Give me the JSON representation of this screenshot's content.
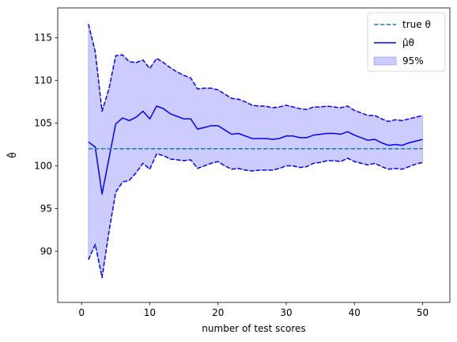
{
  "chart_data": {
    "type": "line",
    "xlabel": "number of test scores",
    "ylabel": "θ̂",
    "xlim": [
      -3.5,
      54
    ],
    "ylim": [
      84.0,
      118.5
    ],
    "x_ticks": [
      0,
      10,
      20,
      30,
      40,
      50
    ],
    "y_ticks": [
      90,
      95,
      100,
      105,
      110,
      115
    ],
    "grid": false,
    "legend_position": "top-right",
    "x": [
      1,
      2,
      3,
      4,
      5,
      6,
      7,
      8,
      9,
      10,
      11,
      12,
      13,
      14,
      15,
      16,
      17,
      18,
      19,
      20,
      21,
      22,
      23,
      24,
      25,
      26,
      27,
      28,
      29,
      30,
      31,
      32,
      33,
      34,
      35,
      36,
      37,
      38,
      39,
      40,
      41,
      42,
      43,
      44,
      45,
      46,
      47,
      48,
      49,
      50
    ],
    "true_value": 102,
    "series": [
      {
        "name": "true θ",
        "role": "true",
        "style": "dashed",
        "color": "#1f77b4"
      },
      {
        "name": "μ̂θ",
        "role": "estimate",
        "style": "solid",
        "color": "#0000ff",
        "values": [
          102.8,
          102.2,
          96.7,
          100.8,
          104.9,
          105.6,
          105.3,
          105.7,
          106.4,
          105.5,
          107.0,
          106.7,
          106.1,
          105.8,
          105.5,
          105.5,
          104.3,
          104.5,
          104.7,
          104.7,
          104.2,
          103.7,
          103.8,
          103.5,
          103.2,
          103.2,
          103.2,
          103.1,
          103.2,
          103.5,
          103.5,
          103.3,
          103.3,
          103.6,
          103.7,
          103.8,
          103.8,
          103.7,
          104.0,
          103.6,
          103.3,
          103.0,
          103.1,
          102.7,
          102.4,
          102.5,
          102.4,
          102.7,
          102.9,
          103.1
        ]
      },
      {
        "name": "upper bound",
        "role": "upper",
        "style": "dashed",
        "color": "#0000ff",
        "values": [
          116.6,
          113.4,
          106.4,
          109.0,
          112.9,
          113.0,
          112.2,
          112.1,
          112.4,
          111.4,
          112.6,
          112.1,
          111.5,
          111.0,
          110.6,
          110.3,
          109.0,
          109.1,
          109.1,
          108.9,
          108.4,
          107.9,
          107.8,
          107.5,
          107.1,
          107.0,
          107.0,
          106.8,
          106.9,
          107.1,
          106.9,
          106.7,
          106.6,
          106.9,
          106.9,
          107.0,
          106.9,
          106.8,
          107.0,
          106.5,
          106.2,
          105.9,
          105.9,
          105.5,
          105.2,
          105.4,
          105.3,
          105.5,
          105.7,
          105.9
        ]
      },
      {
        "name": "lower bound",
        "role": "lower",
        "style": "dashed",
        "color": "#0000ff",
        "values": [
          89.0,
          90.8,
          86.9,
          92.2,
          96.9,
          98.1,
          98.3,
          99.2,
          100.3,
          99.6,
          101.4,
          101.2,
          100.8,
          100.7,
          100.6,
          100.7,
          99.7,
          100.0,
          100.3,
          100.5,
          100.0,
          99.6,
          99.7,
          99.5,
          99.4,
          99.5,
          99.5,
          99.5,
          99.7,
          100.0,
          100.0,
          99.8,
          99.9,
          100.3,
          100.4,
          100.6,
          100.6,
          100.5,
          100.9,
          100.5,
          100.3,
          100.1,
          100.3,
          99.9,
          99.6,
          99.7,
          99.6,
          99.9,
          100.2,
          100.4
        ]
      }
    ],
    "band": {
      "name": "95%",
      "color": "#0000ff",
      "opacity": 0.2
    }
  }
}
